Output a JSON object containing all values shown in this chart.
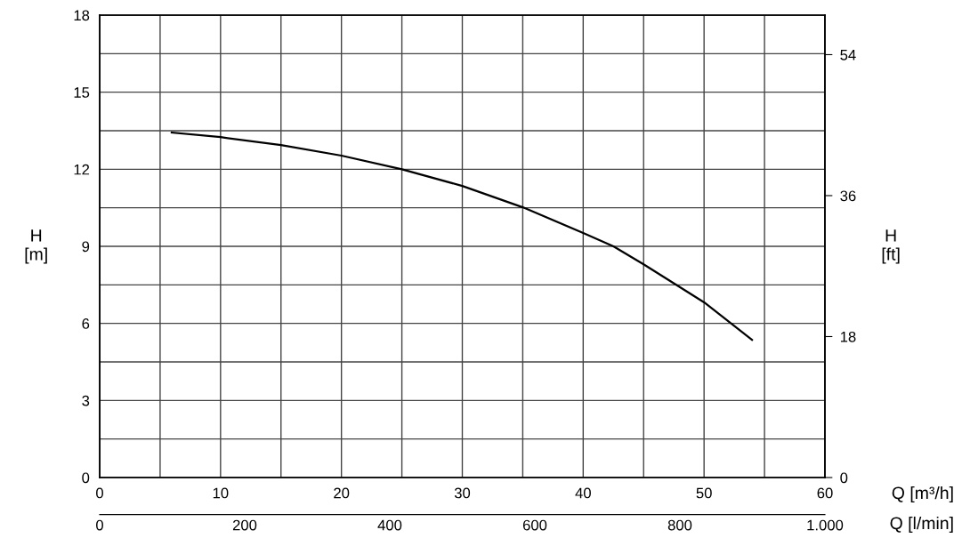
{
  "chart_data": {
    "type": "line",
    "xlabel": "Q [m³/h]",
    "ylabel": "H\n[m]",
    "y2label": "H\n[ft]",
    "x2label": "Q [l/min]",
    "xlim": [
      0,
      60
    ],
    "xticks": [
      0,
      {
        "value": 5,
        "label": null
      },
      10,
      {
        "value": 15,
        "label": null
      },
      20,
      {
        "value": 25,
        "label": null
      },
      30,
      {
        "value": 35,
        "label": null
      },
      40,
      {
        "value": 45,
        "label": null
      },
      50,
      {
        "value": 55,
        "label": null
      },
      60
    ],
    "ylim": [
      0,
      18
    ],
    "yticks": [
      0,
      {
        "value": 1.5,
        "label": null
      },
      3,
      {
        "value": 4.5,
        "label": null
      },
      6,
      {
        "value": 7.5,
        "label": null
      },
      9,
      {
        "value": 10.5,
        "label": null
      },
      12,
      {
        "value": 13.5,
        "label": null
      },
      15,
      {
        "value": 16.5,
        "label": null
      },
      18
    ],
    "y2lim": [
      0,
      59.05
    ],
    "y2ticks": [
      0,
      18,
      36,
      54
    ],
    "x2lim": [
      0,
      1000
    ],
    "x2ticks": [
      0,
      200,
      400,
      600,
      800,
      {
        "value": 1000,
        "label": "1.000"
      }
    ],
    "grid": true,
    "series": [
      {
        "color": "#000000",
        "x": [
          5.96,
          10,
          15,
          20,
          25,
          30,
          35,
          40,
          42.5,
          45,
          50,
          53.97
        ],
        "values": [
          13.43,
          13.25,
          12.94,
          12.53,
          12.0,
          11.35,
          10.52,
          9.52,
          9.0,
          8.3,
          6.82,
          5.36
        ]
      }
    ]
  }
}
